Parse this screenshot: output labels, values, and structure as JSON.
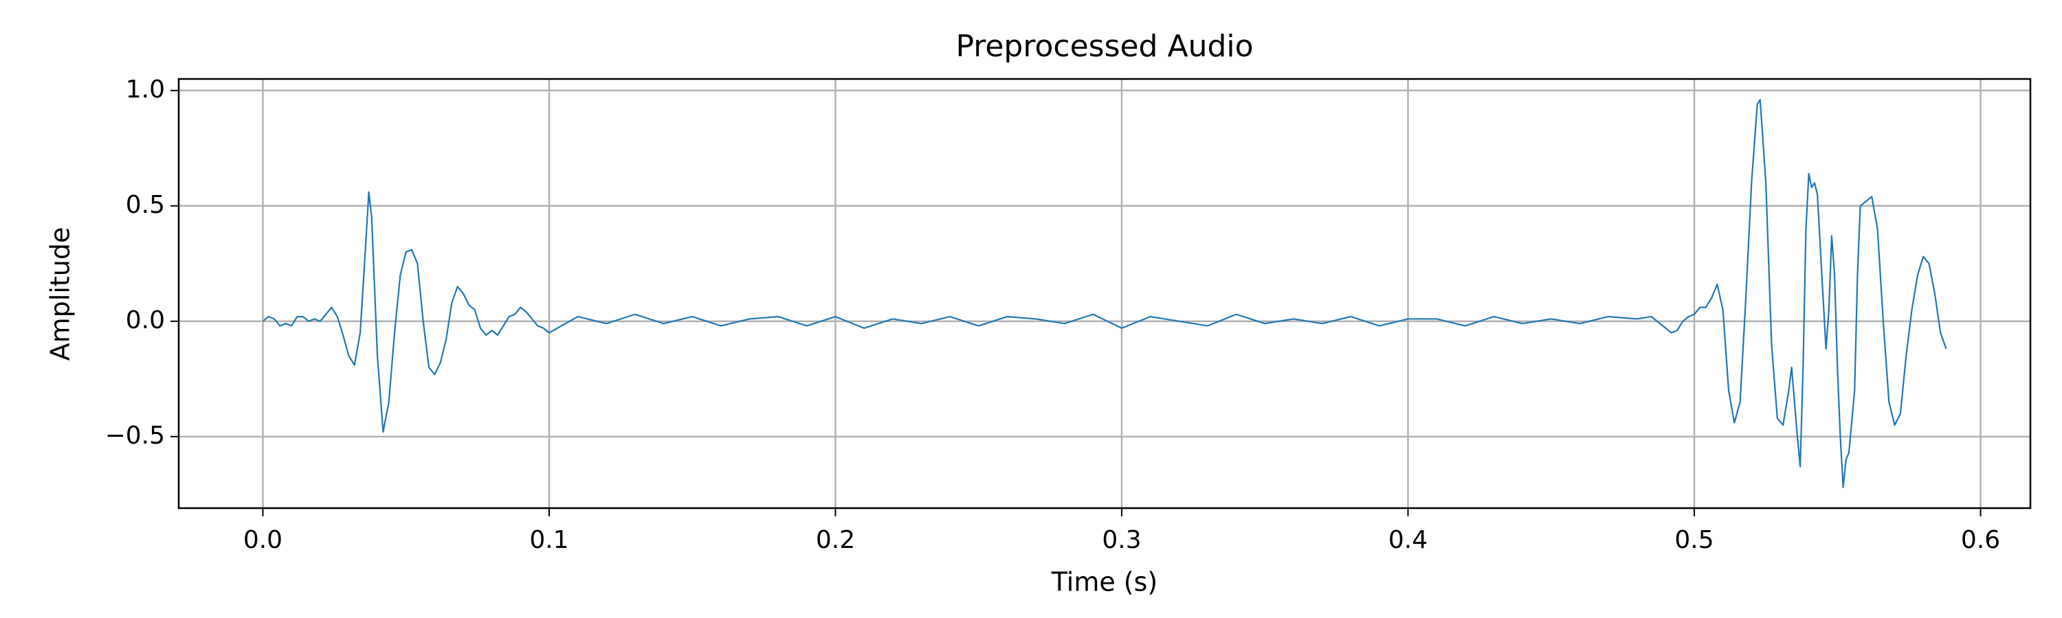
{
  "chart_data": {
    "type": "line",
    "title": "Preprocessed Audio",
    "xlabel": "Time (s)",
    "ylabel": "Amplitude",
    "x": [
      0.0,
      0.002,
      0.004,
      0.006,
      0.008,
      0.01,
      0.012,
      0.014,
      0.016,
      0.018,
      0.02,
      0.022,
      0.024,
      0.026,
      0.028,
      0.03,
      0.032,
      0.034,
      0.036,
      0.037,
      0.038,
      0.04,
      0.042,
      0.044,
      0.046,
      0.048,
      0.05,
      0.052,
      0.054,
      0.056,
      0.058,
      0.06,
      0.062,
      0.064,
      0.066,
      0.068,
      0.07,
      0.072,
      0.074,
      0.076,
      0.078,
      0.08,
      0.082,
      0.084,
      0.086,
      0.088,
      0.09,
      0.092,
      0.094,
      0.096,
      0.098,
      0.1,
      0.11,
      0.12,
      0.13,
      0.14,
      0.15,
      0.16,
      0.17,
      0.18,
      0.19,
      0.2,
      0.21,
      0.22,
      0.23,
      0.24,
      0.25,
      0.26,
      0.27,
      0.28,
      0.29,
      0.3,
      0.31,
      0.32,
      0.33,
      0.34,
      0.35,
      0.36,
      0.37,
      0.38,
      0.39,
      0.4,
      0.41,
      0.42,
      0.43,
      0.44,
      0.45,
      0.46,
      0.47,
      0.48,
      0.485,
      0.49,
      0.492,
      0.494,
      0.496,
      0.498,
      0.5,
      0.502,
      0.504,
      0.506,
      0.508,
      0.51,
      0.512,
      0.514,
      0.516,
      0.518,
      0.52,
      0.522,
      0.523,
      0.525,
      0.527,
      0.529,
      0.531,
      0.533,
      0.534,
      0.536,
      0.537,
      0.538,
      0.539,
      0.54,
      0.541,
      0.542,
      0.543,
      0.545,
      0.546,
      0.547,
      0.548,
      0.549,
      0.55,
      0.551,
      0.552,
      0.553,
      0.554,
      0.556,
      0.557,
      0.558,
      0.56,
      0.562,
      0.564,
      0.566,
      0.568,
      0.57,
      0.572,
      0.574,
      0.576,
      0.578,
      0.58,
      0.582,
      0.584,
      0.586,
      0.588
    ],
    "series": [
      {
        "name": "Amplitude",
        "color": "#1f77b4",
        "values": [
          0.0,
          0.02,
          0.01,
          -0.02,
          -0.01,
          -0.02,
          0.02,
          0.02,
          0.0,
          0.01,
          0.0,
          0.03,
          0.06,
          0.02,
          -0.06,
          -0.15,
          -0.19,
          -0.05,
          0.35,
          0.56,
          0.45,
          -0.15,
          -0.48,
          -0.35,
          -0.05,
          0.2,
          0.3,
          0.31,
          0.25,
          0.0,
          -0.2,
          -0.23,
          -0.18,
          -0.08,
          0.08,
          0.15,
          0.12,
          0.07,
          0.05,
          -0.03,
          -0.06,
          -0.04,
          -0.06,
          -0.02,
          0.02,
          0.03,
          0.06,
          0.04,
          0.01,
          -0.02,
          -0.03,
          -0.05,
          0.02,
          -0.01,
          0.03,
          -0.01,
          0.02,
          -0.02,
          0.01,
          0.02,
          -0.02,
          0.02,
          -0.03,
          0.01,
          -0.01,
          0.02,
          -0.02,
          0.02,
          0.01,
          -0.01,
          0.03,
          -0.03,
          0.02,
          0.0,
          -0.02,
          0.03,
          -0.01,
          0.01,
          -0.01,
          0.02,
          -0.02,
          0.01,
          0.01,
          -0.02,
          0.02,
          -0.01,
          0.01,
          -0.01,
          0.02,
          0.01,
          0.02,
          -0.03,
          -0.05,
          -0.04,
          0.0,
          0.02,
          0.03,
          0.06,
          0.06,
          0.1,
          0.16,
          0.05,
          -0.3,
          -0.44,
          -0.35,
          0.1,
          0.6,
          0.94,
          0.96,
          0.6,
          -0.1,
          -0.42,
          -0.45,
          -0.3,
          -0.2,
          -0.5,
          -0.63,
          -0.2,
          0.4,
          0.64,
          0.58,
          0.6,
          0.55,
          0.1,
          -0.12,
          0.05,
          0.37,
          0.2,
          -0.2,
          -0.5,
          -0.72,
          -0.6,
          -0.57,
          -0.3,
          0.2,
          0.5,
          0.52,
          0.54,
          0.4,
          0.0,
          -0.35,
          -0.45,
          -0.4,
          -0.15,
          0.05,
          0.2,
          0.28,
          0.25,
          0.12,
          -0.05,
          -0.12
        ]
      }
    ],
    "xlim": [
      -0.0294,
      0.6174
    ],
    "ylim": [
      -0.81,
      1.05
    ],
    "xticks": [
      {
        "value": 0,
        "label": "0.0"
      },
      0.1,
      0.2,
      0.3,
      0.4,
      0.5,
      0.6
    ],
    "yticks": [
      {
        "value": -0.5,
        "label": "−0.5"
      },
      {
        "value": 0,
        "label": "0.0"
      },
      0.5,
      {
        "value": 1,
        "label": "1.0"
      }
    ],
    "grid": true
  }
}
